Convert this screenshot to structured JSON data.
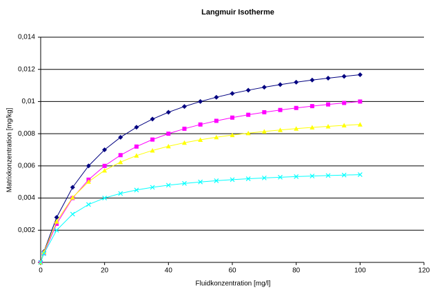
{
  "chart_data": {
    "type": "line",
    "title": "Langmuir Isotherme",
    "x_label": "Fluidkonzentration [mg/l]",
    "y_label": "Matrixkonzentration [mg/kg]",
    "x": [
      0,
      1,
      5,
      10,
      15,
      20,
      25,
      30,
      35,
      40,
      45,
      50,
      55,
      60,
      65,
      70,
      75,
      80,
      85,
      90,
      95,
      100
    ],
    "series": [
      {
        "color": "#000080",
        "marker": "diamond",
        "values": [
          0,
          0.000667,
          0.0028,
          0.004667,
          0.006,
          0.007,
          0.007778,
          0.0084,
          0.008909,
          0.009333,
          0.009692,
          0.01,
          0.010267,
          0.0105,
          0.010706,
          0.010889,
          0.011053,
          0.0112,
          0.011333,
          0.011455,
          0.011565,
          0.011667
        ]
      },
      {
        "color": "#ff00ff",
        "marker": "square",
        "values": [
          0,
          0.000571,
          0.0024,
          0.004,
          0.005143,
          0.006,
          0.006667,
          0.0072,
          0.007636,
          0.008,
          0.008308,
          0.008571,
          0.0088,
          0.009,
          0.009176,
          0.009333,
          0.009474,
          0.0096,
          0.009714,
          0.009818,
          0.009913,
          0.01
        ]
      },
      {
        "color": "#ffff00",
        "marker": "triangle",
        "values": [
          0,
          0.000641,
          0.002541,
          0.004035,
          0.00502,
          0.005717,
          0.006236,
          0.006639,
          0.006959,
          0.007221,
          0.007439,
          0.007622,
          0.007779,
          0.007915,
          0.008034,
          0.008139,
          0.008232,
          0.008315,
          0.00839,
          0.008458,
          0.008519,
          0.008575
        ]
      },
      {
        "color": "#00ffff",
        "marker": "cross",
        "values": [
          0,
          0.000545,
          0.002,
          0.003,
          0.0036,
          0.004,
          0.004286,
          0.0045,
          0.004667,
          0.0048,
          0.004909,
          0.005,
          0.005077,
          0.005143,
          0.0052,
          0.00525,
          0.005294,
          0.005333,
          0.005368,
          0.0054,
          0.005429,
          0.005455
        ]
      }
    ],
    "xlim": [
      0,
      120
    ],
    "xticks": [
      0,
      20,
      40,
      60,
      80,
      100,
      120
    ],
    "ylim": [
      0,
      0.014
    ],
    "yticks": [
      0,
      {
        "value": 0.002,
        "label": "0,002"
      },
      {
        "value": 0.004,
        "label": "0,004"
      },
      {
        "value": 0.006,
        "label": "0,006"
      },
      {
        "value": 0.008,
        "label": "0,008"
      },
      {
        "value": 0.01,
        "label": "0,01"
      },
      {
        "value": 0.012,
        "label": "0,012"
      },
      {
        "value": 0.014,
        "label": "0,014"
      }
    ],
    "grid": true
  }
}
